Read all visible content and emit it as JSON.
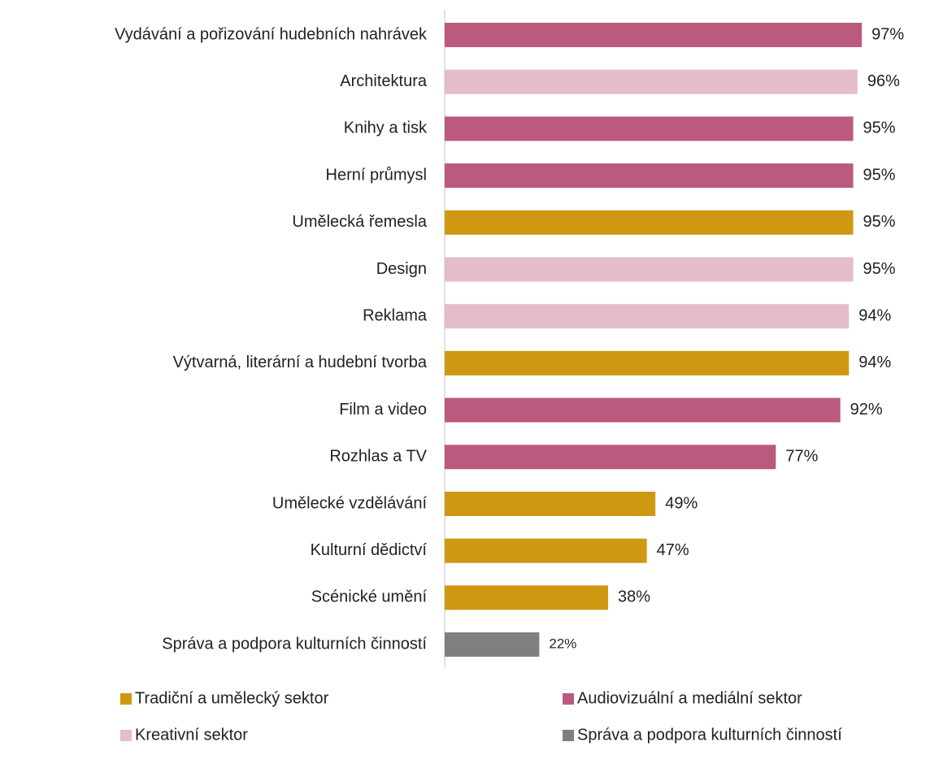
{
  "chart_data": {
    "type": "barh",
    "categories": [
      "Vydávání a pořizování hudebních nahrávek",
      "Architektura",
      "Knihy a tisk",
      "Herní průmysl",
      "Umělecká řemesla",
      "Design",
      "Reklama",
      "Výtvarná, literární a hudební tvorba",
      "Film a video",
      "Rozhlas a TV",
      "Umělecké vzdělávání",
      "Kulturní dědictví",
      "Scénické umění",
      "Správa a podpora kulturních činností"
    ],
    "values": [
      97,
      96,
      95,
      95,
      95,
      95,
      94,
      94,
      92,
      77,
      49,
      47,
      38,
      22
    ],
    "value_labels": [
      "97%",
      "96%",
      "95%",
      "95%",
      "95%",
      "95%",
      "94%",
      "94%",
      "92%",
      "77%",
      "49%",
      "47%",
      "38%",
      "22%"
    ],
    "colors": [
      "#bb5a7e",
      "#e5bccb",
      "#bb5a7e",
      "#bb5a7e",
      "#cf9812",
      "#e5bccb",
      "#e5bccb",
      "#cf9812",
      "#bb5a7e",
      "#bb5a7e",
      "#cf9812",
      "#cf9812",
      "#cf9812",
      "#7f7f7f"
    ],
    "xlim": [
      0,
      100
    ],
    "legend": [
      {
        "name": "Tradiční a umělecký sektor",
        "color": "#cf9812"
      },
      {
        "name": "Audiovizuální a mediální sektor",
        "color": "#bb5a7e"
      },
      {
        "name": "Kreativní sektor",
        "color": "#e5bccb"
      },
      {
        "name": "Správa a podpora kulturních činností",
        "color": "#7f7f7f"
      }
    ]
  }
}
